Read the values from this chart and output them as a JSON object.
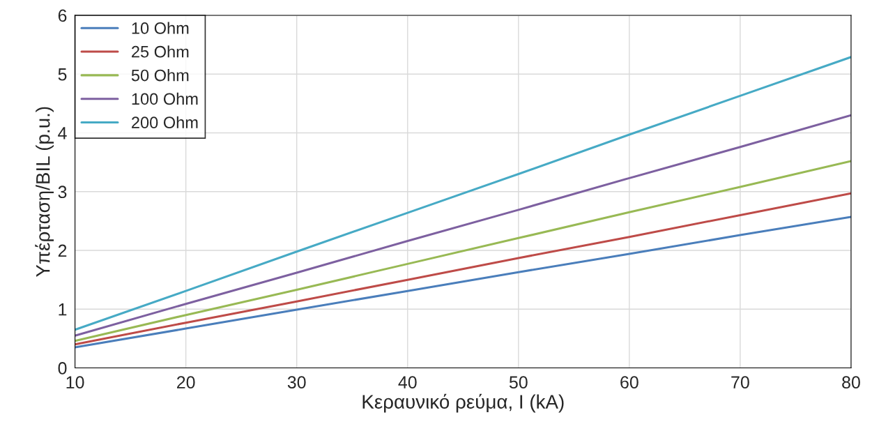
{
  "chart_data": {
    "type": "line",
    "xlabel": "Κεραυνικό ρεύμα, I (kA)",
    "ylabel": "Υπέρταση/BIL (p.u.)",
    "x": [
      10,
      20,
      30,
      40,
      50,
      60,
      70,
      80
    ],
    "series": [
      {
        "name": "10 Ohm",
        "color": "#4a7ebb",
        "values": [
          0.35,
          0.67,
          0.99,
          1.31,
          1.63,
          1.94,
          2.26,
          2.57
        ]
      },
      {
        "name": "25 Ohm",
        "color": "#be4b48",
        "values": [
          0.4,
          0.77,
          1.13,
          1.5,
          1.87,
          2.23,
          2.6,
          2.97
        ]
      },
      {
        "name": "50 Ohm",
        "color": "#98b954",
        "values": [
          0.46,
          0.9,
          1.33,
          1.77,
          2.21,
          2.65,
          3.08,
          3.52
        ]
      },
      {
        "name": "100 Ohm",
        "color": "#7d60a0",
        "values": [
          0.55,
          1.09,
          1.62,
          2.16,
          2.69,
          3.23,
          3.76,
          4.3
        ]
      },
      {
        "name": "200 Ohm",
        "color": "#46aac5",
        "values": [
          0.65,
          1.31,
          1.98,
          2.64,
          3.3,
          3.97,
          4.63,
          5.29
        ]
      }
    ],
    "xlim": [
      10,
      80
    ],
    "xticks": [
      10,
      20,
      30,
      40,
      50,
      60,
      70,
      80
    ],
    "ylim": [
      0,
      6
    ],
    "yticks": [
      0,
      1,
      2,
      3,
      4,
      5,
      6
    ],
    "grid": true,
    "legend": "top left",
    "marker": "none",
    "line_style": "solid"
  }
}
